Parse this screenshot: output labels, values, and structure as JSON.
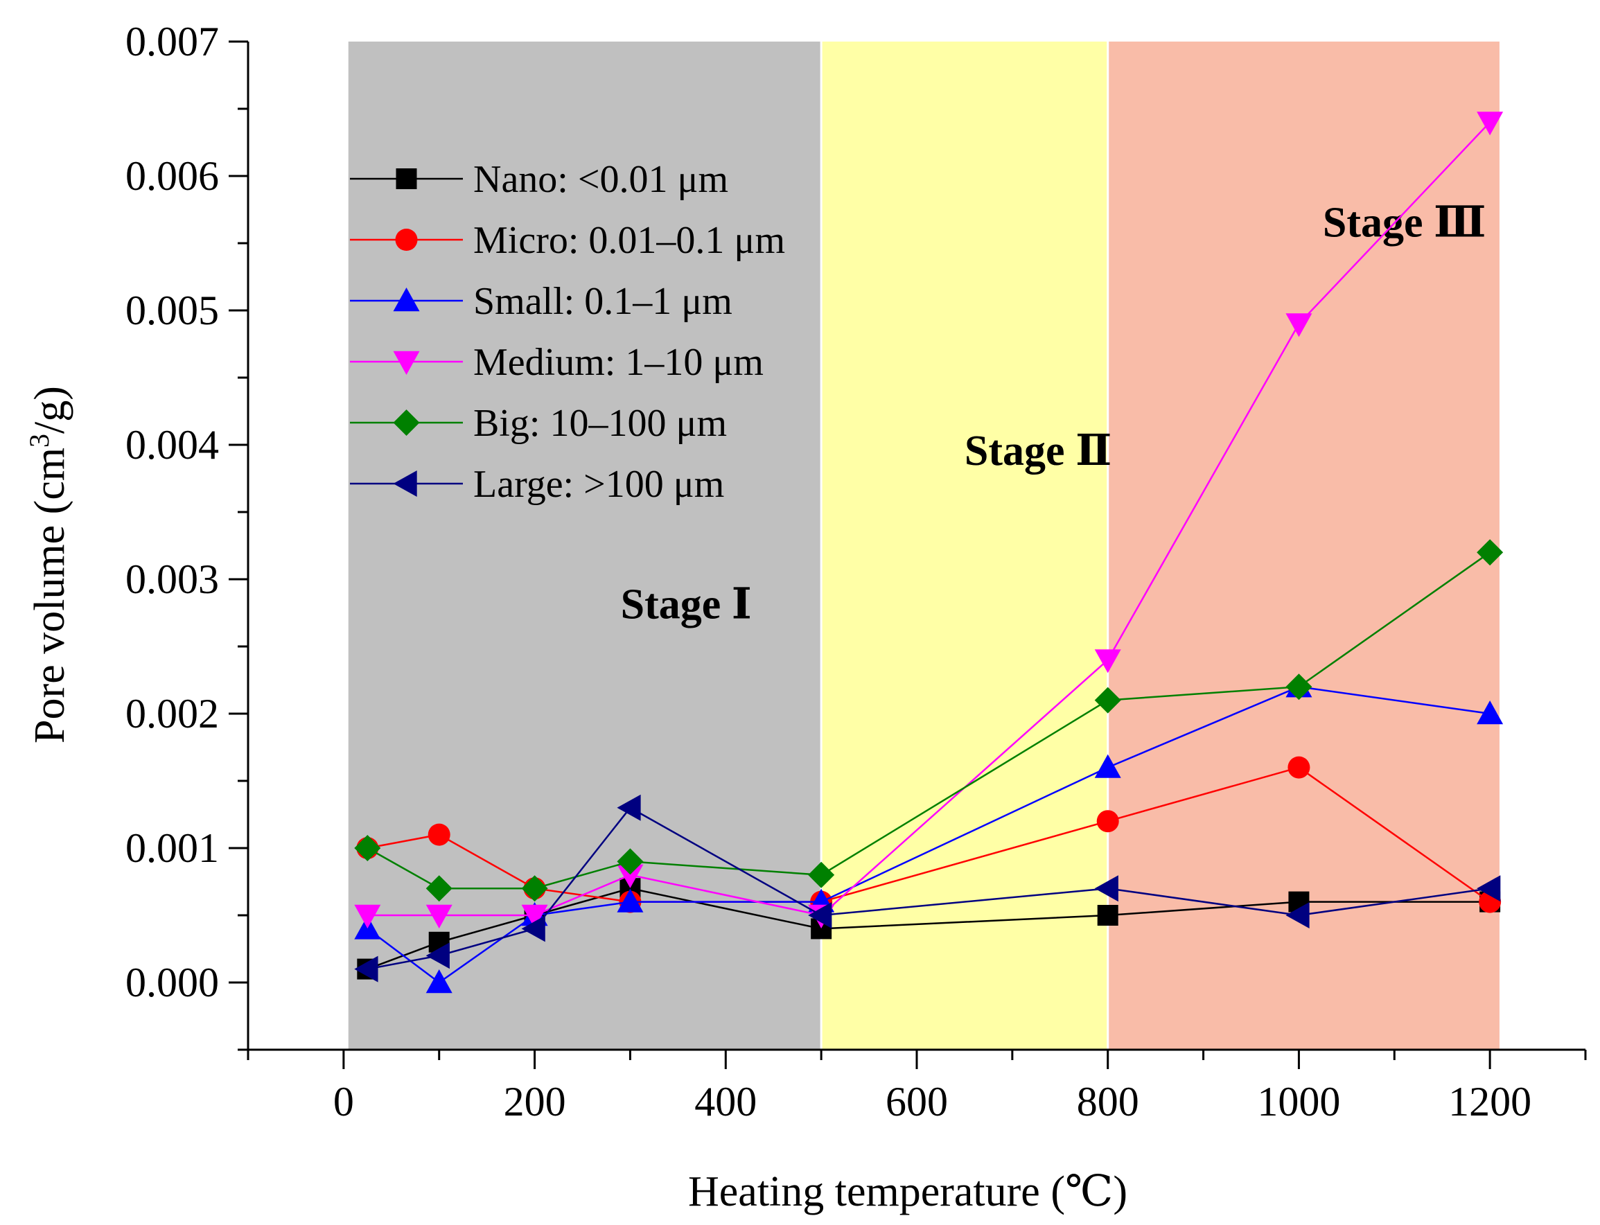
{
  "chart_data": {
    "type": "line",
    "title": "",
    "xlabel": "Heating temperature (℃)",
    "ylabel_main": "Pore volume (cm",
    "ylabel_sup": "3",
    "ylabel_end": "/g)",
    "xlim": [
      -100,
      1300
    ],
    "ylim": [
      -0.0005,
      0.007
    ],
    "xticks": [
      0,
      200,
      400,
      600,
      800,
      1000,
      1200
    ],
    "xtick_labels": [
      "0",
      "200",
      "400",
      "600",
      "800",
      "1000",
      "1200"
    ],
    "yticks": [
      0.0,
      0.001,
      0.002,
      0.003,
      0.004,
      0.005,
      0.006,
      0.007
    ],
    "ytick_labels": [
      "0.000",
      "0.001",
      "0.002",
      "0.003",
      "0.004",
      "0.005",
      "0.006",
      "0.007"
    ],
    "legend_position": "upper-left",
    "stages": [
      {
        "name": "Stage I",
        "label": "Stage Ⅰ",
        "x_range": [
          5,
          500
        ],
        "color": "#c0c0c0",
        "label_anchor": [
          290,
          0.00271
        ]
      },
      {
        "name": "Stage II",
        "label": "Stage Ⅱ",
        "x_range": [
          500,
          800
        ],
        "color": "#ffffa6",
        "label_anchor": [
          650,
          0.00385
        ]
      },
      {
        "name": "Stage III",
        "label": "Stage Ⅲ",
        "x_range": [
          800,
          1210
        ],
        "color": "#f9bca8",
        "label_anchor": [
          1025,
          0.00555
        ]
      }
    ],
    "x": [
      25,
      100,
      200,
      300,
      500,
      800,
      1000,
      1200
    ],
    "series": [
      {
        "name": "Nano: <0.01 μm",
        "color": "#000000",
        "marker": "square",
        "values": [
          0.0001,
          0.0003,
          0.0005,
          0.0007,
          0.0004,
          0.0005,
          0.0006,
          0.0006
        ]
      },
      {
        "name": "Micro: 0.01–0.1 μm",
        "color": "#ff0000",
        "marker": "circle",
        "values": [
          0.001,
          0.0011,
          0.0007,
          0.0006,
          0.0006,
          0.0012,
          0.0016,
          0.0006
        ]
      },
      {
        "name": "Small: 0.1–1 μm",
        "color": "#0000ff",
        "marker": "triangle-up",
        "values": [
          0.0004,
          0.0,
          0.0005,
          0.0006,
          0.0006,
          0.0016,
          0.0022,
          0.002
        ]
      },
      {
        "name": "Medium: 1–10 μm",
        "color": "#ff00ff",
        "marker": "triangle-down",
        "values": [
          0.0005,
          0.0005,
          0.0005,
          0.0008,
          0.0005,
          0.0024,
          0.0049,
          0.0064
        ]
      },
      {
        "name": "Big: 10–100 μm",
        "color": "#008000",
        "marker": "diamond",
        "values": [
          0.001,
          0.0007,
          0.0007,
          0.0009,
          0.0008,
          0.0021,
          0.0022,
          0.0032
        ]
      },
      {
        "name": "Large: >100 μm",
        "color": "#000080",
        "marker": "triangle-left",
        "values": [
          0.0001,
          0.0002,
          0.0004,
          0.0013,
          0.0005,
          0.0007,
          0.0005,
          0.0007
        ]
      }
    ]
  }
}
